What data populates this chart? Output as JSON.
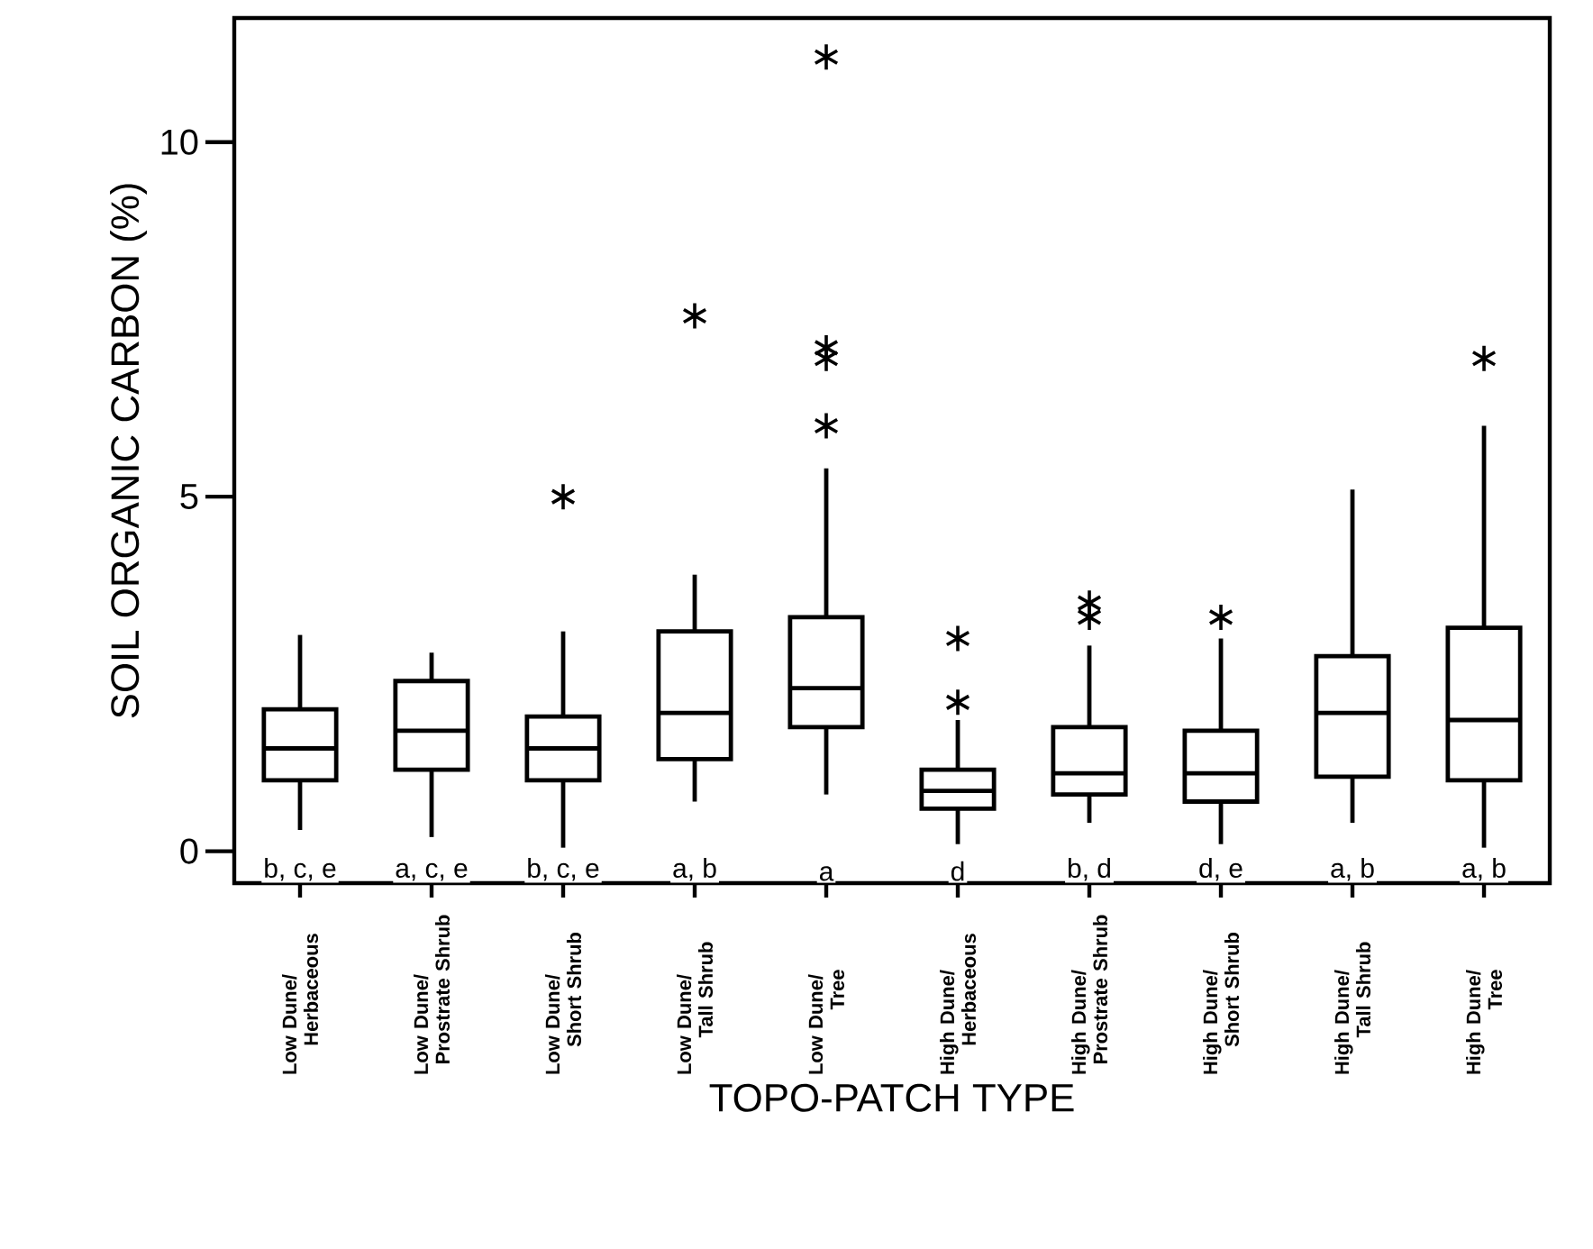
{
  "chart_data": {
    "type": "box",
    "xlabel": "TOPO-PATCH TYPE",
    "ylabel": "SOIL ORGANIC CARBON (%)",
    "categories": [
      "Low Dune/ Herbaceous",
      "Low Dune/ Prostrate Shrub",
      "Low Dune/ Short Shrub",
      "Low Dune/ Tall Shrub",
      "Low Dune/ Tree",
      "High Dune/ Herbaceous",
      "High Dune/ Prostrate Shrub",
      "High Dune/ Short Shrub",
      "High Dune/ Tall Shrub",
      "High Dune/ Tree"
    ],
    "boxes": [
      {
        "low": 0.3,
        "q1": 1.0,
        "median": 1.45,
        "q3": 2.0,
        "high": 3.05
      },
      {
        "low": 0.2,
        "q1": 1.15,
        "median": 1.7,
        "q3": 2.4,
        "high": 2.8
      },
      {
        "low": 0.05,
        "q1": 1.0,
        "median": 1.45,
        "q3": 1.9,
        "high": 3.1,
        "outliers": [
          5.0
        ]
      },
      {
        "low": 0.7,
        "q1": 1.3,
        "median": 1.95,
        "q3": 3.1,
        "high": 3.9,
        "outliers": [
          7.55
        ]
      },
      {
        "low": 0.8,
        "q1": 1.75,
        "median": 2.3,
        "q3": 3.3,
        "high": 5.4,
        "outliers": [
          6.0,
          6.95,
          7.1,
          11.2
        ]
      },
      {
        "low": 0.1,
        "q1": 0.6,
        "median": 0.85,
        "q3": 1.15,
        "high": 1.85,
        "outliers": [
          2.1,
          3.0
        ]
      },
      {
        "low": 0.4,
        "q1": 0.8,
        "median": 1.1,
        "q3": 1.75,
        "high": 2.9,
        "outliers": [
          3.3,
          3.5
        ]
      },
      {
        "low": 0.1,
        "q1": 0.7,
        "median": 1.1,
        "q3": 1.7,
        "high": 3.0,
        "outliers": [
          3.3
        ]
      },
      {
        "low": 0.4,
        "q1": 1.05,
        "median": 1.95,
        "q3": 2.75,
        "high": 5.1
      },
      {
        "low": 0.05,
        "q1": 1.0,
        "median": 1.85,
        "q3": 3.15,
        "high": 6.0,
        "outliers": [
          6.95
        ]
      }
    ],
    "color": "#000000",
    "marker": "star",
    "ylim": [
      -0.45,
      11.75
    ],
    "yticks": [
      0,
      5,
      10
    ],
    "annotations": [
      "b, c, e",
      "a, c, e",
      "b, c, e",
      "a, b",
      "a",
      "d",
      "b, d",
      "d, e",
      "a, b",
      "a, b"
    ]
  }
}
